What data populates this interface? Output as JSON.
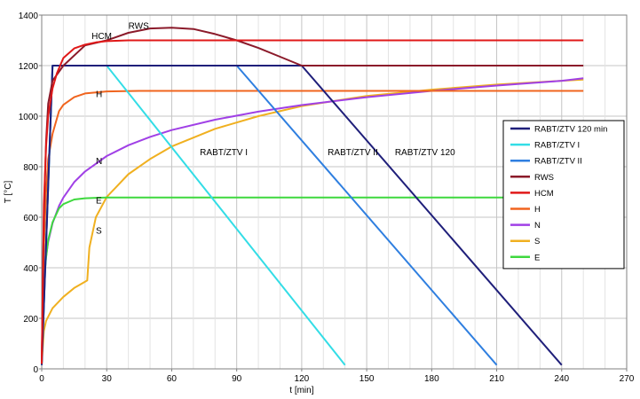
{
  "chart_data": {
    "type": "line",
    "xlabel": "t [min]",
    "ylabel": "T [°C]",
    "xlim": [
      0,
      270
    ],
    "ylim": [
      0,
      1400
    ],
    "xticks": [
      0,
      30,
      60,
      90,
      120,
      150,
      180,
      210,
      240,
      270
    ],
    "yticks": [
      0,
      200,
      400,
      600,
      800,
      1000,
      1200,
      1400
    ],
    "grid": true,
    "legend_position": "right",
    "series": [
      {
        "name": "RABT/ZTV 120 min",
        "color": "#1f1f7a",
        "x": [
          0,
          5,
          120,
          240
        ],
        "y": [
          15,
          1200,
          1200,
          15
        ]
      },
      {
        "name": "RABT/ZTV I",
        "color": "#33dde6",
        "x": [
          0,
          5,
          30,
          140
        ],
        "y": [
          15,
          1200,
          1200,
          15
        ]
      },
      {
        "name": "RABT/ZTV II",
        "color": "#2f7fe0",
        "x": [
          0,
          5,
          90,
          210
        ],
        "y": [
          15,
          1200,
          1200,
          15
        ]
      },
      {
        "name": "RWS",
        "color": "#8b1a2a",
        "x": [
          0,
          1,
          2,
          3,
          5,
          10,
          20,
          30,
          40,
          50,
          60,
          70,
          80,
          90,
          100,
          110,
          120,
          250
        ],
        "y": [
          20,
          600,
          900,
          1050,
          1140,
          1200,
          1280,
          1300,
          1330,
          1347,
          1350,
          1345,
          1325,
          1300,
          1270,
          1235,
          1200,
          1200
        ]
      },
      {
        "name": "HCM",
        "color": "#e01818",
        "x": [
          0,
          1,
          2,
          3,
          5,
          7,
          10,
          15,
          20,
          25,
          30,
          40,
          60,
          250
        ],
        "y": [
          20,
          650,
          880,
          1000,
          1110,
          1170,
          1230,
          1268,
          1283,
          1292,
          1297,
          1300,
          1300,
          1300
        ]
      },
      {
        "name": "H",
        "color": "#f0641e",
        "x": [
          0,
          1,
          2,
          3,
          5,
          8,
          10,
          15,
          20,
          30,
          45,
          60,
          250
        ],
        "y": [
          20,
          480,
          700,
          830,
          930,
          1020,
          1045,
          1075,
          1090,
          1098,
          1100,
          1100,
          1100
        ]
      },
      {
        "name": "N",
        "color": "#a040e6",
        "x": [
          0,
          0.5,
          1,
          2,
          3,
          5,
          8,
          10,
          15,
          20,
          30,
          40,
          50,
          60,
          80,
          100,
          120,
          150,
          180,
          210,
          240,
          250
        ],
        "y": [
          20,
          250,
          350,
          445,
          503,
          576,
          645,
          678,
          739,
          781,
          842,
          885,
          918,
          945,
          986,
          1018,
          1044,
          1075,
          1100,
          1121,
          1140,
          1150
        ]
      },
      {
        "name": "S",
        "color": "#f0b020",
        "x": [
          0,
          1,
          2,
          5,
          10,
          15,
          20,
          21,
          22,
          25,
          30,
          40,
          50,
          60,
          80,
          100,
          120,
          150,
          180,
          210,
          240,
          250
        ],
        "y": [
          20,
          150,
          190,
          240,
          285,
          320,
          345,
          350,
          480,
          600,
          680,
          770,
          830,
          880,
          950,
          1000,
          1040,
          1080,
          1105,
          1125,
          1140,
          1145
        ]
      },
      {
        "name": "E",
        "color": "#3ed83e",
        "x": [
          0,
          1,
          2,
          3,
          5,
          8,
          10,
          15,
          20,
          25,
          30,
          250
        ],
        "y": [
          20,
          330,
          440,
          510,
          580,
          635,
          652,
          670,
          675,
          677,
          678,
          678
        ]
      }
    ],
    "annotations": [
      {
        "text": "RWS",
        "x": 40,
        "y": 1345
      },
      {
        "text": "HCM",
        "x": 23,
        "y": 1305
      },
      {
        "text": "H",
        "x": 25,
        "y": 1075
      },
      {
        "text": "N",
        "x": 25,
        "y": 810
      },
      {
        "text": "E",
        "x": 25,
        "y": 655
      },
      {
        "text": "S",
        "x": 25,
        "y": 535
      },
      {
        "text": "RABT/ZTV I",
        "x": 73,
        "y": 845
      },
      {
        "text": "RABT/ZTV II",
        "x": 132,
        "y": 845
      },
      {
        "text": "RABT/ZTV 120",
        "x": 163,
        "y": 845
      }
    ]
  }
}
